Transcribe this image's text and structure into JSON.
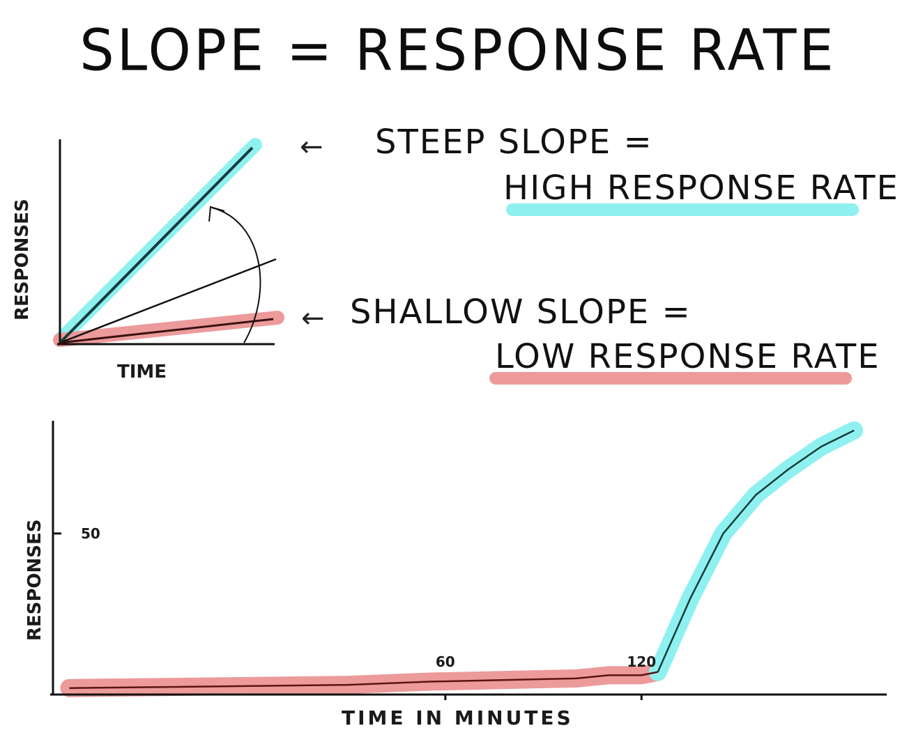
{
  "title": "SLOPE = RESPONSE RATE",
  "annotations": {
    "steep_line1": "STEEP SLOPE =",
    "steep_line2": "HIGH RESPONSE RATE",
    "shallow_line1": "SHALLOW SLOPE =",
    "shallow_line2": "LOW RESPONSE RATE",
    "arrow": "←"
  },
  "colors": {
    "high_highlight": "#8ff0f0",
    "low_highlight": "#ec9a9a",
    "ink": "#111111"
  },
  "schematic": {
    "ylabel": "RESPONSES",
    "xlabel": "TIME"
  },
  "record": {
    "ylabel": "RESPONSES",
    "xlabel": "TIME IN MINUTES",
    "y_tick": "50",
    "x_ticks": [
      "60",
      "120"
    ]
  },
  "chart_data": {
    "type": "line",
    "xlabel": "TIME IN MINUTES",
    "ylabel": "RESPONSES",
    "xlim": [
      -60,
      195
    ],
    "ylim": [
      0,
      85
    ],
    "series": [
      {
        "x": [
          -55,
          30,
          55,
          100,
          110,
          120,
          125
        ],
        "y": [
          2,
          3,
          4,
          5,
          6,
          6,
          7
        ]
      },
      {
        "x": [
          125,
          135,
          145,
          155,
          165,
          175,
          185
        ],
        "y": [
          7,
          30,
          50,
          62,
          70,
          77,
          82
        ]
      }
    ]
  }
}
